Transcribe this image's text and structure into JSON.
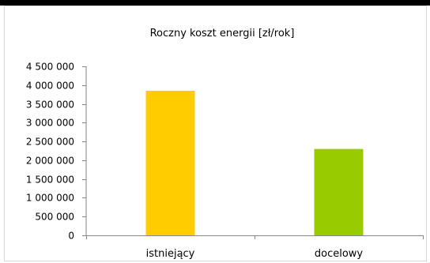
{
  "chart_data": {
    "type": "bar",
    "title": "Roczny koszt energii [zł/rok]",
    "categories": [
      "istniejący",
      "docelowy"
    ],
    "values": [
      3850000,
      2300000
    ],
    "colors": [
      "#FFCC00",
      "#99CC00"
    ],
    "ylim": [
      0,
      4500000
    ],
    "yticks": [
      0,
      500000,
      1000000,
      1500000,
      2000000,
      2500000,
      3000000,
      3500000,
      4000000,
      4500000
    ],
    "ytick_labels": [
      "0",
      "500 000",
      "1 000 000",
      "1 500 000",
      "2 000 000",
      "2 500 000",
      "3 000 000",
      "3 500 000",
      "4 000 000",
      "4 500 000"
    ],
    "grid": false,
    "legend": "none"
  }
}
